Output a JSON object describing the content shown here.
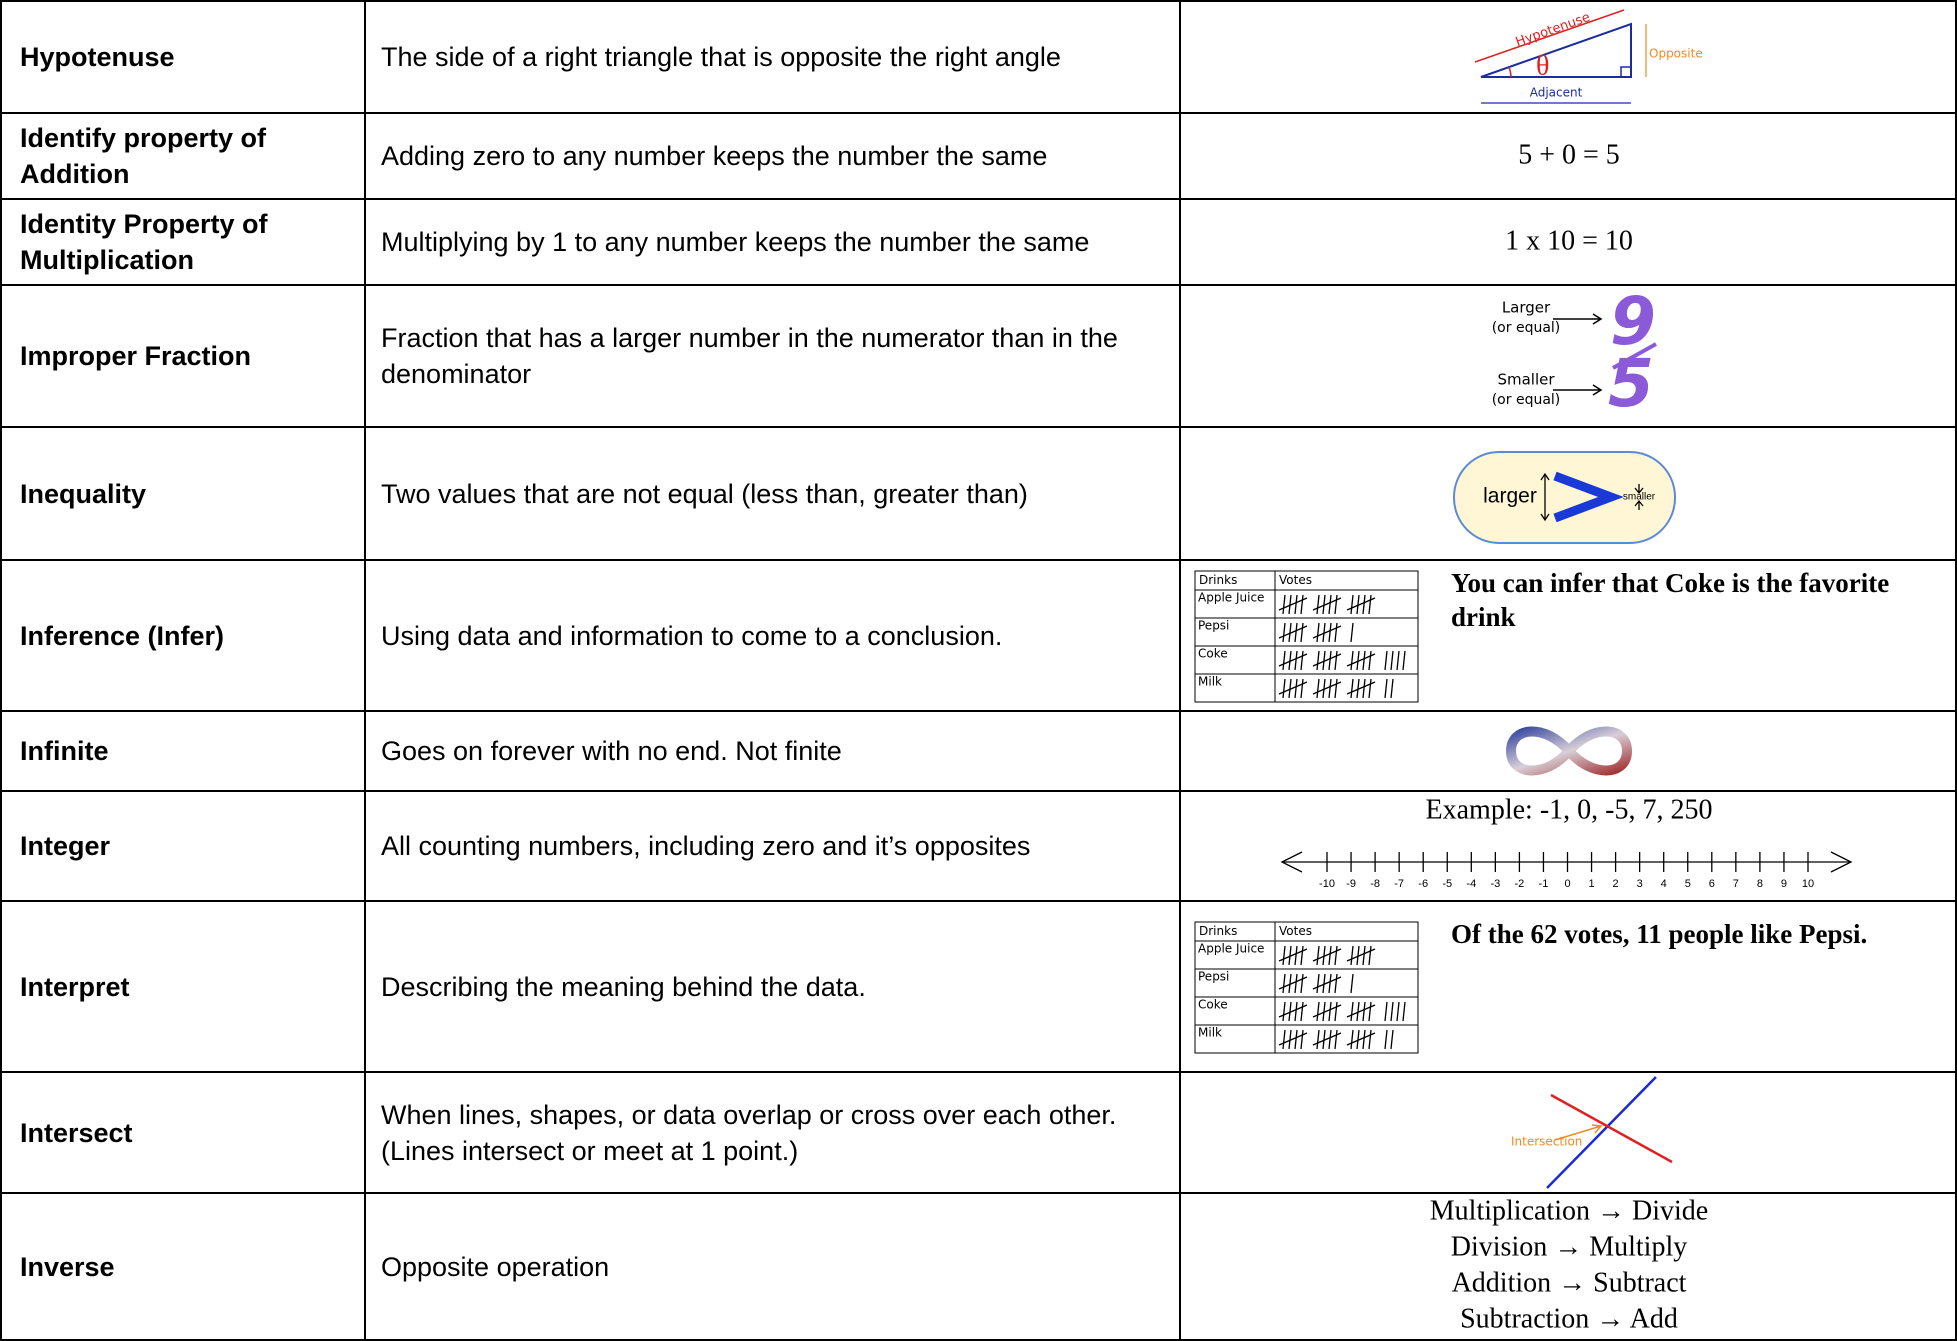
{
  "table": {
    "rows": [
      {
        "term": "Hypotenuse",
        "definition": "The side of a right triangle that is opposite the right angle",
        "figure": {
          "hypotenuse": "Hypotenuse",
          "angle": "θ",
          "opposite": "Opposite",
          "adjacent": "Adjacent"
        }
      },
      {
        "term": "Identify property of Addition",
        "definition": "Adding zero to any number keeps the number the same",
        "example": "5 + 0 = 5"
      },
      {
        "term": "Identity Property of Multiplication",
        "definition": "Multiplying by 1 to any number keeps the number the same",
        "example": "1 x 10 = 10"
      },
      {
        "term": "Improper Fraction",
        "definition": "Fraction that has a larger number in the numerator than in the denominator",
        "figure": {
          "top_label": "Larger",
          "top_note": "(or equal)",
          "bottom_label": "Smaller",
          "bottom_note": "(or equal)",
          "numerator": "9",
          "denominator": "5"
        }
      },
      {
        "term": "Inequality",
        "definition": "Two values that are not equal (less than, greater than)",
        "figure": {
          "left": "larger",
          "right": "smaller"
        }
      },
      {
        "term": "Inference (Infer)",
        "definition": "Using data and information to come to a conclusion.",
        "tally": {
          "headers": [
            "Drinks",
            "Votes"
          ],
          "rows": [
            {
              "drink": "Apple Juice",
              "votes": 15
            },
            {
              "drink": "Pepsi",
              "votes": 11
            },
            {
              "drink": "Coke",
              "votes": 19
            },
            {
              "drink": "Milk",
              "votes": 17
            }
          ]
        },
        "note": "You can infer that Coke is the favorite drink"
      },
      {
        "term": "Infinite",
        "definition": "Goes on forever with no end. Not finite"
      },
      {
        "term": "Integer",
        "definition": "All counting numbers, including zero and it’s opposites",
        "example": "Example: -1, 0, -5, 7, 250",
        "number_line": [
          -10,
          -9,
          -8,
          -7,
          -6,
          -5,
          -4,
          -3,
          -2,
          -1,
          0,
          1,
          2,
          3,
          4,
          5,
          6,
          7,
          8,
          9,
          10
        ]
      },
      {
        "term": "Interpret",
        "definition": "Describing the meaning behind the data.",
        "tally": {
          "headers": [
            "Drinks",
            "Votes"
          ],
          "rows": [
            {
              "drink": "Apple Juice",
              "votes": 15
            },
            {
              "drink": "Pepsi",
              "votes": 11
            },
            {
              "drink": "Coke",
              "votes": 19
            },
            {
              "drink": "Milk",
              "votes": 17
            }
          ]
        },
        "note": "Of the 62 votes, 11 people like Pepsi."
      },
      {
        "term": "Intersect",
        "definition": "When lines, shapes, or data overlap or cross over each other.  (Lines intersect or meet at 1 point.)",
        "figure": {
          "label": "Intersection"
        }
      },
      {
        "term": "Inverse",
        "definition": "Opposite operation",
        "lines": [
          "Multiplication → Divide",
          "Division → Multiply",
          "Addition → Subtract",
          "Subtraction → Add"
        ]
      }
    ]
  }
}
